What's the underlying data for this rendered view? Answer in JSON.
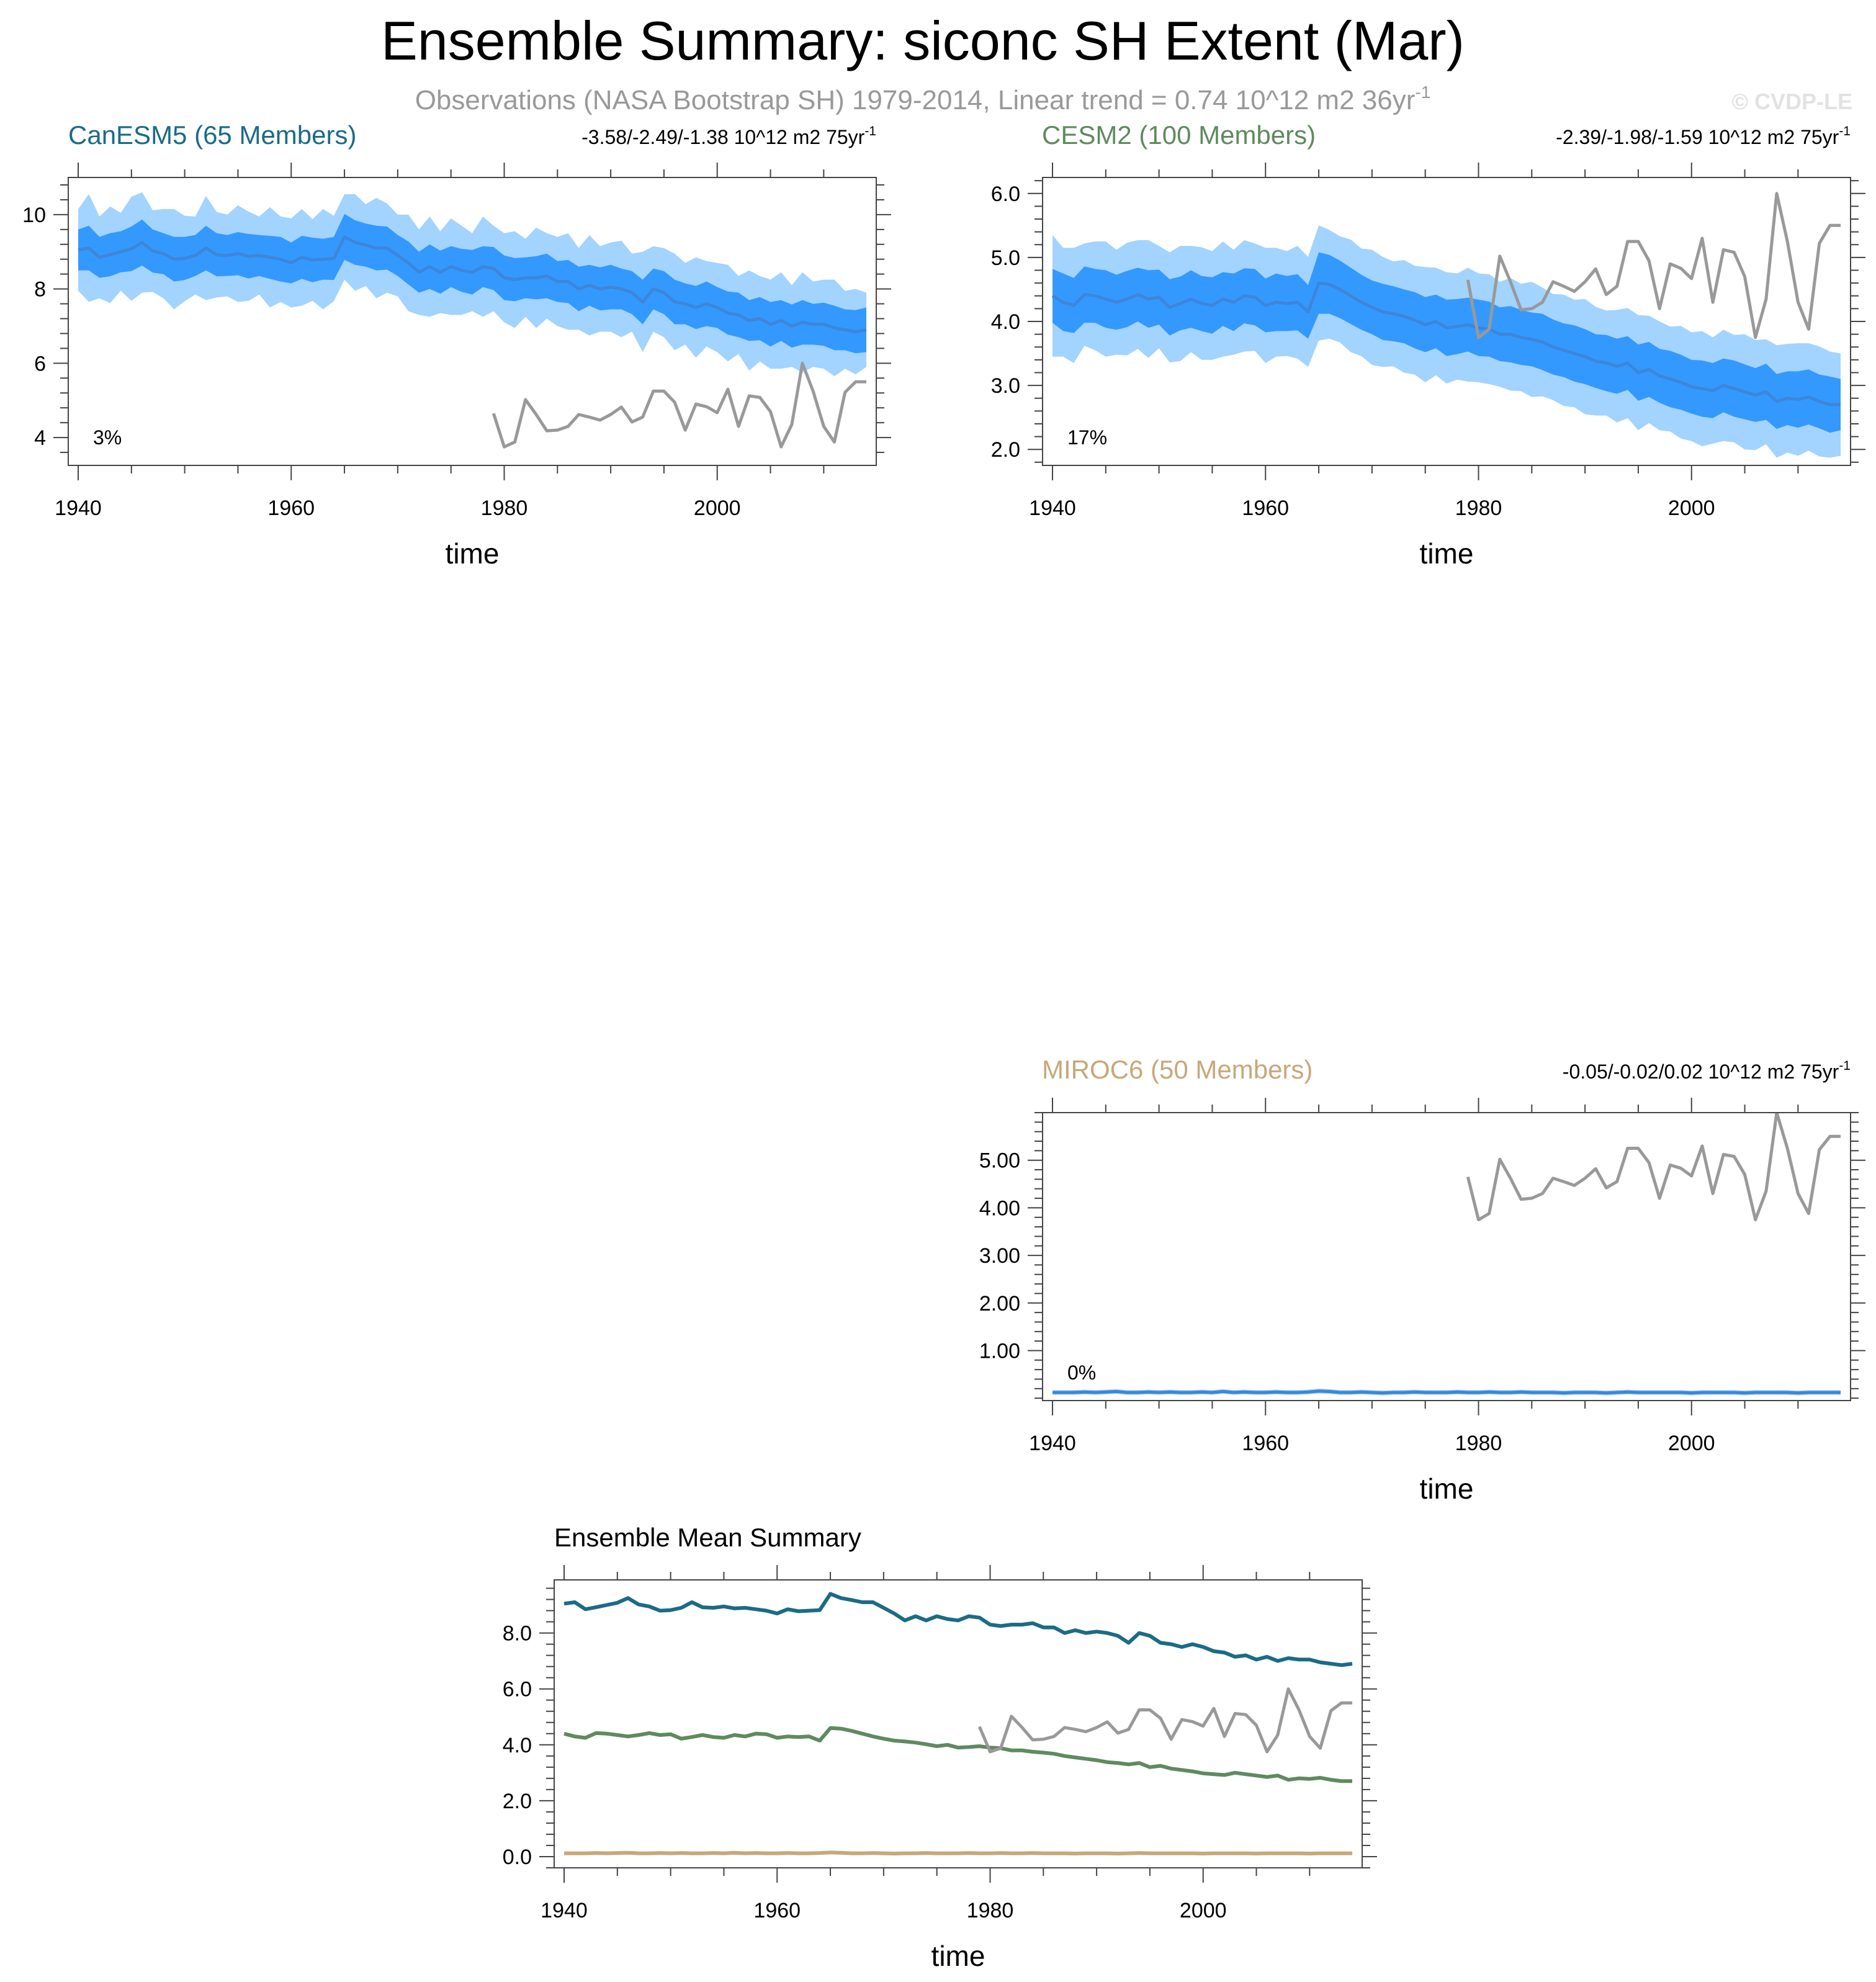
{
  "figure": {
    "title": "Ensemble Summary: siconc SH Extent (Mar)",
    "subtitle_main": "Observations (NASA Bootstrap SH) 1979-2014, Linear trend = 0.74 10^12 m2 36yr",
    "subtitle_sup": "-1",
    "copyright": "© CVDP-LE"
  },
  "colors": {
    "canesm5": "#1b6b86",
    "cesm2": "#5f8a5f",
    "miroc6": "#c8a77a",
    "obs": "#999999",
    "band_outer": "#a3d3ff",
    "band_inner": "#3399ff",
    "ens_mean": "#3d86d8"
  },
  "chart_data": [
    {
      "id": "canesm5",
      "type": "area",
      "title": "CanESM5 (65 Members)",
      "trend_main": "-3.58/-2.49/-1.38 10^12 m2 75yr",
      "trend_sup": "-1",
      "percent_label": "3%",
      "xlabel": "time",
      "xlim": [
        1940,
        2014
      ],
      "ylim": [
        3.25,
        11.0
      ],
      "xticks": [
        1940,
        1960,
        1980,
        2000
      ],
      "yticks": [
        4,
        6,
        8,
        10
      ],
      "ytick_labels": [
        "4",
        "6",
        "8",
        "10"
      ],
      "x_start": 1940,
      "mean": [
        9.05,
        9.1,
        8.85,
        8.92,
        9.0,
        9.08,
        9.25,
        9.02,
        8.95,
        8.8,
        8.82,
        8.9,
        9.1,
        8.92,
        8.9,
        8.95,
        8.88,
        8.9,
        8.85,
        8.8,
        8.7,
        8.85,
        8.78,
        8.8,
        8.82,
        9.4,
        9.25,
        9.18,
        9.1,
        9.1,
        8.9,
        8.7,
        8.45,
        8.6,
        8.45,
        8.6,
        8.5,
        8.45,
        8.6,
        8.55,
        8.3,
        8.25,
        8.3,
        8.3,
        8.35,
        8.2,
        8.2,
        8.0,
        8.1,
        8.0,
        8.05,
        8.0,
        7.9,
        7.65,
        8.0,
        7.9,
        7.65,
        7.6,
        7.5,
        7.6,
        7.5,
        7.35,
        7.3,
        7.15,
        7.2,
        7.05,
        7.15,
        7.0,
        7.1,
        7.05,
        7.05,
        6.95,
        6.9,
        6.85,
        6.9
      ],
      "inner_half": [
        0.55,
        0.6,
        0.55,
        0.58,
        0.55,
        0.6,
        0.62,
        0.58,
        0.55,
        0.6,
        0.58,
        0.55,
        0.6,
        0.58,
        0.55,
        0.58,
        0.6,
        0.55,
        0.58,
        0.6,
        0.55,
        0.58,
        0.6,
        0.55,
        0.58,
        0.62,
        0.6,
        0.58,
        0.6,
        0.58,
        0.55,
        0.58,
        0.55,
        0.6,
        0.58,
        0.55,
        0.58,
        0.6,
        0.55,
        0.58,
        0.6,
        0.58,
        0.55,
        0.58,
        0.6,
        0.55,
        0.58,
        0.6,
        0.55,
        0.58,
        0.6,
        0.55,
        0.58,
        0.6,
        0.55,
        0.58,
        0.6,
        0.55,
        0.58,
        0.6,
        0.55,
        0.58,
        0.6,
        0.55,
        0.58,
        0.6,
        0.55,
        0.58,
        0.6,
        0.55,
        0.58,
        0.6,
        0.55,
        0.58,
        0.6
      ],
      "outer_half": [
        1.1,
        1.45,
        1.1,
        1.3,
        1.05,
        1.4,
        1.35,
        1.1,
        1.2,
        1.35,
        1.15,
        1.05,
        1.4,
        1.15,
        1.1,
        1.3,
        1.2,
        1.05,
        1.35,
        1.15,
        1.2,
        1.3,
        1.1,
        1.35,
        1.15,
        1.15,
        1.3,
        1.1,
        1.35,
        1.2,
        1.1,
        1.3,
        1.15,
        1.35,
        1.1,
        1.3,
        1.2,
        1.05,
        1.35,
        1.15,
        1.2,
        1.3,
        1.05,
        1.35,
        1.15,
        1.2,
        1.3,
        1.1,
        1.35,
        1.15,
        1.2,
        1.3,
        1.05,
        1.35,
        1.15,
        1.2,
        1.3,
        1.1,
        1.35,
        1.15,
        1.2,
        1.3,
        1.05,
        1.35,
        1.15,
        1.2,
        1.3,
        1.1,
        1.35,
        1.15,
        1.2,
        1.3,
        1.05,
        1.15,
        1.0
      ]
    },
    {
      "id": "cesm2",
      "type": "area",
      "title": "CESM2 (100 Members)",
      "trend_main": "-2.39/-1.98/-1.59 10^12 m2 75yr",
      "trend_sup": "-1",
      "percent_label": "17%",
      "xlabel": "time",
      "xlim": [
        1940,
        2014
      ],
      "ylim": [
        1.75,
        6.25
      ],
      "xticks": [
        1940,
        1960,
        1980,
        2000
      ],
      "yticks": [
        2.0,
        3.0,
        4.0,
        5.0,
        6.0
      ],
      "ytick_labels": [
        "2.0",
        "3.0",
        "4.0",
        "5.0",
        "6.0"
      ],
      "x_start": 1940,
      "mean": [
        4.4,
        4.3,
        4.25,
        4.42,
        4.4,
        4.35,
        4.3,
        4.35,
        4.42,
        4.35,
        4.38,
        4.22,
        4.28,
        4.35,
        4.28,
        4.25,
        4.35,
        4.3,
        4.4,
        4.38,
        4.25,
        4.3,
        4.28,
        4.3,
        4.15,
        4.6,
        4.58,
        4.5,
        4.4,
        4.3,
        4.22,
        4.15,
        4.12,
        4.08,
        4.02,
        3.95,
        4.0,
        3.9,
        3.92,
        3.95,
        3.9,
        3.88,
        3.8,
        3.8,
        3.75,
        3.72,
        3.68,
        3.6,
        3.55,
        3.5,
        3.45,
        3.38,
        3.35,
        3.3,
        3.35,
        3.2,
        3.25,
        3.15,
        3.1,
        3.05,
        2.98,
        2.95,
        2.92,
        3.0,
        2.95,
        2.9,
        2.85,
        2.9,
        2.75,
        2.8,
        2.78,
        2.82,
        2.75,
        2.7,
        2.7
      ],
      "inner_half": [
        0.42,
        0.45,
        0.43,
        0.44,
        0.42,
        0.45,
        0.43,
        0.44,
        0.42,
        0.45,
        0.43,
        0.44,
        0.42,
        0.45,
        0.43,
        0.44,
        0.42,
        0.45,
        0.43,
        0.44,
        0.42,
        0.45,
        0.43,
        0.44,
        0.42,
        0.48,
        0.46,
        0.45,
        0.44,
        0.43,
        0.42,
        0.44,
        0.43,
        0.42,
        0.44,
        0.43,
        0.42,
        0.44,
        0.43,
        0.42,
        0.44,
        0.43,
        0.42,
        0.44,
        0.43,
        0.42,
        0.44,
        0.43,
        0.42,
        0.44,
        0.43,
        0.42,
        0.44,
        0.43,
        0.42,
        0.44,
        0.43,
        0.42,
        0.44,
        0.43,
        0.42,
        0.44,
        0.43,
        0.42,
        0.44,
        0.43,
        0.42,
        0.44,
        0.43,
        0.42,
        0.44,
        0.43,
        0.42,
        0.44,
        0.4
      ],
      "outer_half": [
        0.95,
        0.85,
        0.9,
        0.8,
        0.85,
        0.9,
        0.82,
        0.88,
        0.85,
        0.92,
        0.8,
        0.86,
        0.9,
        0.83,
        0.88,
        0.85,
        0.9,
        0.82,
        0.87,
        0.84,
        0.9,
        0.85,
        0.82,
        0.88,
        0.86,
        0.9,
        0.85,
        0.83,
        0.88,
        0.84,
        0.9,
        0.86,
        0.82,
        0.88,
        0.85,
        0.9,
        0.84,
        0.87,
        0.83,
        0.89,
        0.85,
        0.86,
        0.82,
        0.88,
        0.84,
        0.9,
        0.85,
        0.83,
        0.87,
        0.84,
        0.9,
        0.85,
        0.82,
        0.88,
        0.86,
        0.9,
        0.84,
        0.85,
        0.82,
        0.88,
        0.85,
        0.9,
        0.83,
        0.87,
        0.84,
        0.9,
        0.86,
        0.82,
        0.88,
        0.85,
        0.88,
        0.84,
        0.86,
        0.83,
        0.8
      ]
    },
    {
      "id": "miroc6",
      "type": "area",
      "title": "MIROC6 (50 Members)",
      "trend_main": "-0.05/-0.02/0.02 10^12 m2 75yr",
      "trend_sup": "-1",
      "percent_label": "0%",
      "xlabel": "time",
      "xlim": [
        1940,
        2014
      ],
      "ylim": [
        -0.05,
        6.0
      ],
      "xticks": [
        1940,
        1960,
        1980,
        2000
      ],
      "yticks": [
        1.0,
        2.0,
        3.0,
        4.0,
        5.0
      ],
      "ytick_labels": [
        "1.00",
        "2.00",
        "3.00",
        "4.00",
        "5.00"
      ],
      "x_start": 1940,
      "mean": [
        0.12,
        0.12,
        0.12,
        0.13,
        0.12,
        0.13,
        0.14,
        0.12,
        0.12,
        0.13,
        0.12,
        0.13,
        0.12,
        0.12,
        0.13,
        0.12,
        0.14,
        0.12,
        0.13,
        0.12,
        0.12,
        0.13,
        0.12,
        0.12,
        0.13,
        0.15,
        0.14,
        0.12,
        0.12,
        0.13,
        0.12,
        0.11,
        0.12,
        0.12,
        0.13,
        0.12,
        0.12,
        0.12,
        0.13,
        0.12,
        0.12,
        0.13,
        0.12,
        0.12,
        0.13,
        0.12,
        0.12,
        0.12,
        0.11,
        0.12,
        0.12,
        0.12,
        0.11,
        0.12,
        0.13,
        0.12,
        0.12,
        0.12,
        0.12,
        0.12,
        0.11,
        0.12,
        0.12,
        0.12,
        0.12,
        0.11,
        0.12,
        0.12,
        0.12,
        0.12,
        0.11,
        0.12,
        0.12,
        0.12,
        0.12
      ],
      "inner_half_const": 0.025,
      "outer_half_const": 0.05
    }
  ],
  "observations": {
    "x_start": 1979,
    "values": [
      4.65,
      3.75,
      3.88,
      5.02,
      4.62,
      4.18,
      4.2,
      4.3,
      4.62,
      4.55,
      4.47,
      4.62,
      4.82,
      4.42,
      4.55,
      5.25,
      5.25,
      4.95,
      4.2,
      4.9,
      4.83,
      4.67,
      5.3,
      4.3,
      5.12,
      5.08,
      4.7,
      3.75,
      4.35,
      6.0,
      5.25,
      4.3,
      3.88,
      5.22,
      5.5,
      5.5
    ]
  },
  "summary": {
    "title": "Ensemble Mean Summary",
    "xlabel": "time",
    "xlim": [
      1940,
      2014
    ],
    "ylim": [
      -0.4,
      9.9
    ],
    "xticks": [
      1940,
      1960,
      1980,
      2000
    ],
    "yticks": [
      0.0,
      2.0,
      4.0,
      6.0,
      8.0
    ],
    "ytick_labels": [
      "0.0",
      "2.0",
      "4.0",
      "6.0",
      "8.0"
    ]
  }
}
